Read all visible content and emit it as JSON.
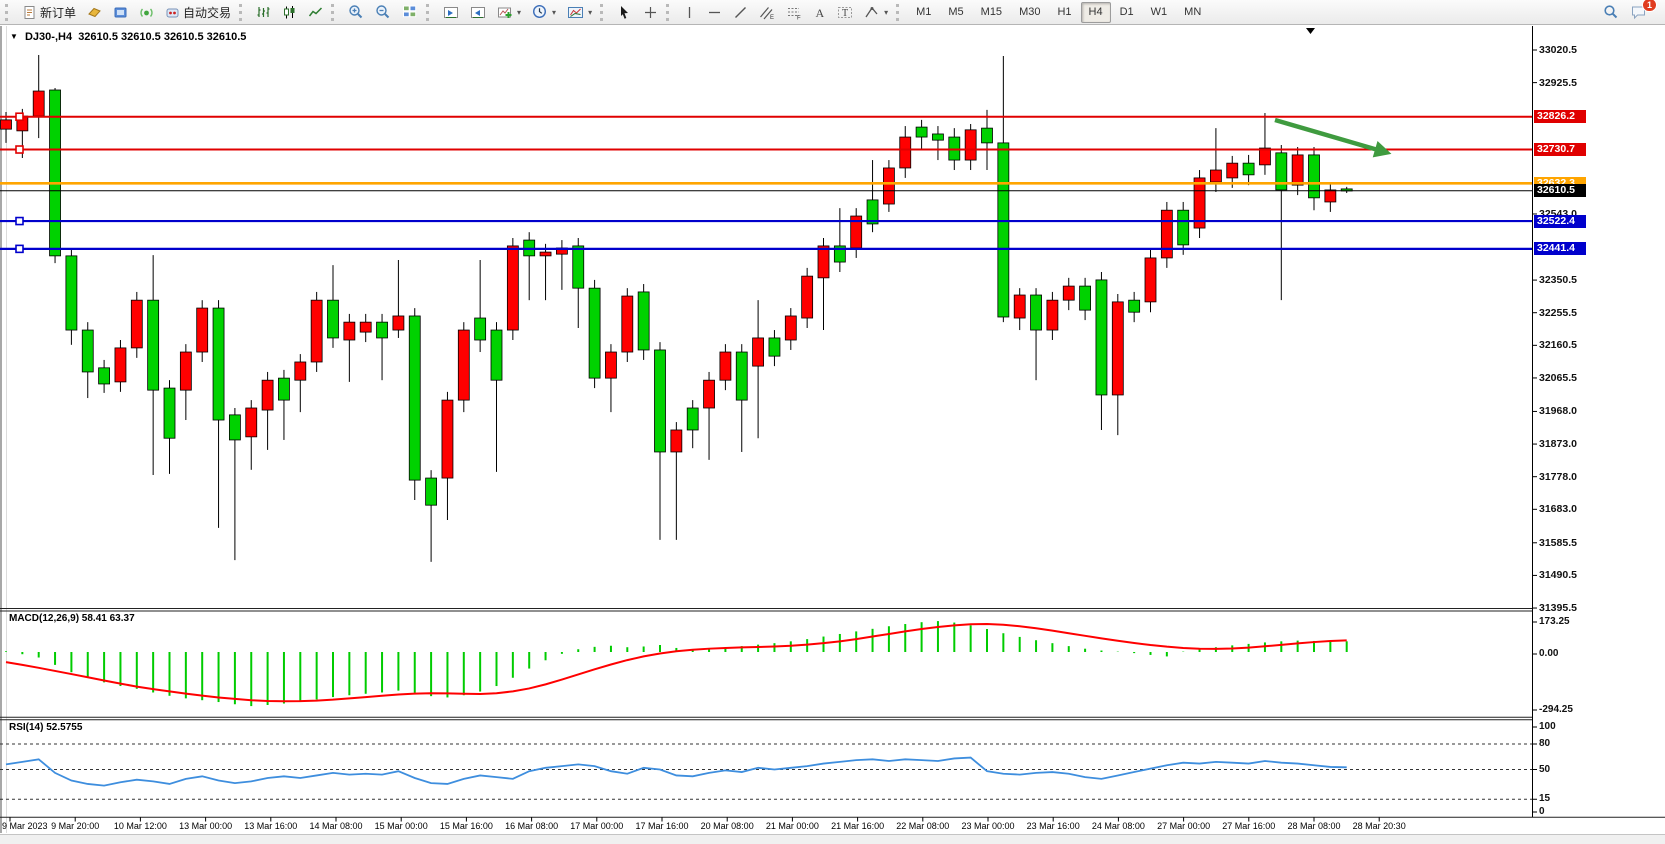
{
  "toolbar": {
    "new_order": "新订单",
    "auto_trading": "自动交易",
    "chat_badge": "1",
    "icons": [
      "new-order",
      "order-ticket",
      "market-window",
      "signals",
      "auto-trading",
      "bar-chart",
      "candle-chart",
      "line-chart",
      "zoom-in",
      "zoom-out",
      "tile-windows",
      "indicator-window-prev",
      "indicator-window-next",
      "add-indicator",
      "period-selector",
      "templates",
      "cursor",
      "crosshair",
      "vertical-line",
      "horizontal-line",
      "trend-line",
      "equidistant-channel",
      "fibonacci",
      "text",
      "text-label",
      "shapes",
      "search",
      "chat"
    ],
    "timeframes": [
      "M1",
      "M5",
      "M15",
      "M30",
      "H1",
      "H4",
      "D1",
      "W1",
      "MN"
    ],
    "active_timeframe": "H4"
  },
  "chart": {
    "symbol_period": "DJ30-,H4",
    "ohlc": "32610.5 32610.5 32610.5 32610.5",
    "current_price": "32610.5",
    "y_ticks": [
      "33020.5",
      "32925.5",
      "32543.0",
      "32350.5",
      "32255.5",
      "32160.5",
      "32065.5",
      "31968.0",
      "31873.0",
      "31778.0",
      "31683.0",
      "31585.5",
      "31490.5",
      "31395.5"
    ],
    "levels": [
      {
        "price": 32826.2,
        "label": "32826.2",
        "color": "#e00000",
        "width": 2,
        "marker": true
      },
      {
        "price": 32730.7,
        "label": "32730.7",
        "color": "#e00000",
        "width": 2,
        "marker": true
      },
      {
        "price": 32632.3,
        "label": "32632.3",
        "color": "#ffa500",
        "width": 2.6,
        "marker": false
      },
      {
        "price": 32610.5,
        "label": "32610.5",
        "color": "#000000",
        "width": 1,
        "marker": false
      },
      {
        "price": 32522.4,
        "label": "32522.4",
        "color": "#0000cc",
        "width": 2.2,
        "marker": true
      },
      {
        "price": 32441.4,
        "label": "32441.4",
        "color": "#0000cc",
        "width": 2.2,
        "marker": true
      }
    ],
    "time_labels": [
      "9 Mar 2023",
      "9 Mar 20:00",
      "10 Mar 12:00",
      "13 Mar 00:00",
      "13 Mar 16:00",
      "14 Mar 08:00",
      "15 Mar 00:00",
      "15 Mar 16:00",
      "16 Mar 08:00",
      "17 Mar 00:00",
      "17 Mar 16:00",
      "20 Mar 08:00",
      "21 Mar 00:00",
      "21 Mar 16:00",
      "22 Mar 08:00",
      "23 Mar 00:00",
      "23 Mar 16:00",
      "24 Mar 08:00",
      "27 Mar 00:00",
      "27 Mar 16:00",
      "28 Mar 08:00",
      "28 Mar 20:30"
    ],
    "colors": {
      "up_candle": "#ff0000",
      "down_candle": "#00d200",
      "wick": "#000000"
    }
  },
  "chart_data": {
    "type": "candlestick",
    "fields": [
      "color",
      "high",
      "body_top",
      "body_bottom",
      "low"
    ],
    "candles": [
      [
        "r",
        32840,
        32817,
        32790,
        32750
      ],
      [
        "r",
        32849,
        32828,
        32785,
        32706
      ],
      [
        "r",
        33006,
        32901,
        32828,
        32764
      ],
      [
        "g",
        32910,
        32904,
        32421,
        32400
      ],
      [
        "g",
        32438,
        32421,
        32205,
        32162
      ],
      [
        "g",
        32228,
        32205,
        32083,
        32007
      ],
      [
        "g",
        32118,
        32095,
        32048,
        32022
      ],
      [
        "r",
        32176,
        32153,
        32054,
        32025
      ],
      [
        "r",
        32316,
        32292,
        32153,
        32124
      ],
      [
        "g",
        32423,
        32292,
        32030,
        31783
      ],
      [
        "g",
        32059,
        32036,
        31890,
        31786
      ],
      [
        "r",
        32164,
        32141,
        32030,
        31943
      ],
      [
        "r",
        32292,
        32269,
        32141,
        32112
      ],
      [
        "g",
        32292,
        32269,
        31943,
        31629
      ],
      [
        "g",
        31978,
        31958,
        31885,
        31535
      ],
      [
        "r",
        32001,
        31978,
        31894,
        31798
      ],
      [
        "r",
        32083,
        32059,
        31972,
        31856
      ],
      [
        "g",
        32089,
        32065,
        32001,
        31885
      ],
      [
        "r",
        32135,
        32112,
        32059,
        31966
      ],
      [
        "r",
        32316,
        32292,
        32112,
        32083
      ],
      [
        "g",
        32394,
        32292,
        32182,
        32153
      ],
      [
        "r",
        32252,
        32228,
        32176,
        32054
      ],
      [
        "r",
        32252,
        32228,
        32199,
        32170
      ],
      [
        "g",
        32252,
        32228,
        32182,
        32059
      ],
      [
        "r",
        32409,
        32246,
        32205,
        32182
      ],
      [
        "g",
        32269,
        32246,
        31768,
        31710
      ],
      [
        "g",
        31797,
        31774,
        31695,
        31530
      ],
      [
        "r",
        32025,
        32001,
        31774,
        31652
      ],
      [
        "r",
        32228,
        32205,
        32001,
        31966
      ],
      [
        "g",
        32409,
        32240,
        32176,
        32141
      ],
      [
        "g",
        32228,
        32205,
        32059,
        31792
      ],
      [
        "r",
        32473,
        32450,
        32205,
        32176
      ],
      [
        "g",
        32490,
        32467,
        32421,
        32292
      ],
      [
        "r",
        32456,
        32432,
        32421,
        32292
      ],
      [
        "r",
        32467,
        32444,
        32426,
        32322
      ],
      [
        "g",
        32473,
        32450,
        32327,
        32211
      ],
      [
        "g",
        32351,
        32327,
        32065,
        32036
      ],
      [
        "r",
        32164,
        32141,
        32065,
        31966
      ],
      [
        "r",
        32327,
        32304,
        32141,
        32112
      ],
      [
        "g",
        32339,
        32316,
        32147,
        32118
      ],
      [
        "g",
        32170,
        32147,
        31850,
        31594
      ],
      [
        "r",
        31937,
        31914,
        31850,
        31594
      ],
      [
        "g",
        32001,
        31978,
        31914,
        31861
      ],
      [
        "r",
        32083,
        32059,
        31978,
        31827
      ],
      [
        "r",
        32164,
        32141,
        32059,
        32030
      ],
      [
        "g",
        32164,
        32141,
        32001,
        31850
      ],
      [
        "r",
        32292,
        32182,
        32100,
        31890
      ],
      [
        "g",
        32205,
        32182,
        32129,
        32100
      ],
      [
        "r",
        32269,
        32246,
        32176,
        32147
      ],
      [
        "r",
        32386,
        32362,
        32240,
        32211
      ],
      [
        "r",
        32473,
        32450,
        32357,
        32205
      ],
      [
        "g",
        32560,
        32450,
        32403,
        32374
      ],
      [
        "r",
        32560,
        32537,
        32444,
        32415
      ],
      [
        "g",
        32700,
        32584,
        32514,
        32490
      ],
      [
        "r",
        32700,
        32677,
        32572,
        32549
      ],
      [
        "r",
        32799,
        32767,
        32677,
        32648
      ],
      [
        "g",
        32817,
        32796,
        32767,
        32729
      ],
      [
        "g",
        32799,
        32776,
        32758,
        32700
      ],
      [
        "g",
        32793,
        32767,
        32700,
        32671
      ],
      [
        "r",
        32805,
        32788,
        32700,
        32671
      ],
      [
        "g",
        32846,
        32793,
        32750,
        32671
      ],
      [
        "g",
        33003,
        32750,
        32243,
        32228
      ],
      [
        "r",
        32327,
        32307,
        32240,
        32205
      ],
      [
        "g",
        32327,
        32307,
        32205,
        32059
      ],
      [
        "r",
        32316,
        32292,
        32205,
        32176
      ],
      [
        "r",
        32357,
        32333,
        32292,
        32263
      ],
      [
        "g",
        32357,
        32333,
        32263,
        32234
      ],
      [
        "g",
        32374,
        32351,
        32016,
        31914
      ],
      [
        "r",
        32310,
        32287,
        32016,
        31899
      ],
      [
        "g",
        32316,
        32292,
        32257,
        32228
      ],
      [
        "r",
        32438,
        32415,
        32287,
        32257
      ],
      [
        "r",
        32578,
        32554,
        32415,
        32386
      ],
      [
        "g",
        32578,
        32554,
        32453,
        32424
      ],
      [
        "r",
        32671,
        32648,
        32502,
        32473
      ],
      [
        "r",
        32793,
        32671,
        32636,
        32607
      ],
      [
        "r",
        32712,
        32691,
        32648,
        32619
      ],
      [
        "g",
        32715,
        32691,
        32657,
        32627
      ],
      [
        "r",
        32837,
        32735,
        32686,
        32657
      ],
      [
        "g",
        32744,
        32721,
        32613,
        32292
      ],
      [
        "r",
        32738,
        32715,
        32627,
        32598
      ],
      [
        "g",
        32738,
        32715,
        32590,
        32554
      ],
      [
        "r",
        32636,
        32613,
        32578,
        32549
      ],
      [
        "g",
        32622,
        32616,
        32610,
        32604
      ]
    ],
    "y_range": [
      31395.5,
      33020.5
    ]
  },
  "macd": {
    "label": "MACD(12,26,9) 58.41 63.37",
    "main_value": 58.41,
    "signal_value": 63.37,
    "axis": [
      "173.25",
      "0.00",
      "-294.25"
    ],
    "hist": [
      4,
      -12,
      -30,
      -70,
      -110,
      -140,
      -165,
      -185,
      -200,
      -220,
      -238,
      -252,
      -262,
      -272,
      -284,
      -294,
      -288,
      -280,
      -270,
      -258,
      -245,
      -235,
      -227,
      -220,
      -210,
      -222,
      -240,
      -247,
      -235,
      -215,
      -185,
      -140,
      -90,
      -45,
      -10,
      15,
      28,
      34,
      26,
      30,
      38,
      22,
      10,
      16,
      24,
      32,
      40,
      48,
      58,
      70,
      84,
      98,
      112,
      126,
      140,
      152,
      162,
      168,
      160,
      145,
      125,
      102,
      82,
      64,
      48,
      32,
      18,
      8,
      2,
      -6,
      -16,
      -24,
      2,
      16,
      26,
      36,
      44,
      52,
      58,
      62,
      60,
      55,
      58
    ],
    "signal": [
      -55,
      -70,
      -86,
      -103,
      -120,
      -137,
      -155,
      -172,
      -188,
      -202,
      -214,
      -226,
      -237,
      -247,
      -255,
      -262,
      -266,
      -268,
      -267,
      -264,
      -259,
      -252,
      -245,
      -238,
      -231,
      -226,
      -224,
      -225,
      -227,
      -228,
      -224,
      -214,
      -198,
      -176,
      -150,
      -122,
      -94,
      -68,
      -44,
      -24,
      -8,
      4,
      12,
      18,
      22,
      25,
      27,
      30,
      34,
      40,
      48,
      58,
      70,
      84,
      98,
      112,
      125,
      136,
      145,
      151,
      152,
      148,
      140,
      129,
      116,
      102,
      88,
      74,
      61,
      49,
      38,
      29,
      22,
      18,
      17,
      19,
      24,
      31,
      39,
      47,
      54,
      60,
      63
    ],
    "colors": {
      "hist": "#00cc00",
      "signal": "#ff0000"
    }
  },
  "rsi": {
    "label": "RSI(14) 52.5755",
    "value": 52.5755,
    "axis": [
      "100",
      "80",
      "50",
      "15",
      "0"
    ],
    "dashed_levels": [
      80,
      50,
      15
    ],
    "values": [
      56,
      59,
      62,
      46,
      37,
      33,
      31,
      35,
      38,
      36,
      33,
      39,
      42,
      37,
      34,
      36,
      40,
      42,
      40,
      43,
      46,
      44,
      45,
      44,
      48,
      40,
      34,
      33,
      39,
      43,
      41,
      39,
      48,
      52,
      54,
      56,
      54,
      48,
      45,
      52,
      50,
      43,
      42,
      46,
      49,
      47,
      52,
      50,
      52,
      54,
      57,
      59,
      61,
      62,
      60,
      62,
      61,
      60,
      63,
      64,
      48,
      45,
      44,
      46,
      47,
      45,
      41,
      39,
      43,
      47,
      51,
      55,
      58,
      57,
      59,
      58,
      57,
      60,
      58,
      57,
      55,
      53,
      52.58
    ],
    "color": "#3e8ede"
  },
  "annotation": {
    "type": "trend-arrow",
    "color": "#3f9b3f",
    "from": [
      1275,
      120
    ],
    "to": [
      1378,
      150
    ]
  }
}
